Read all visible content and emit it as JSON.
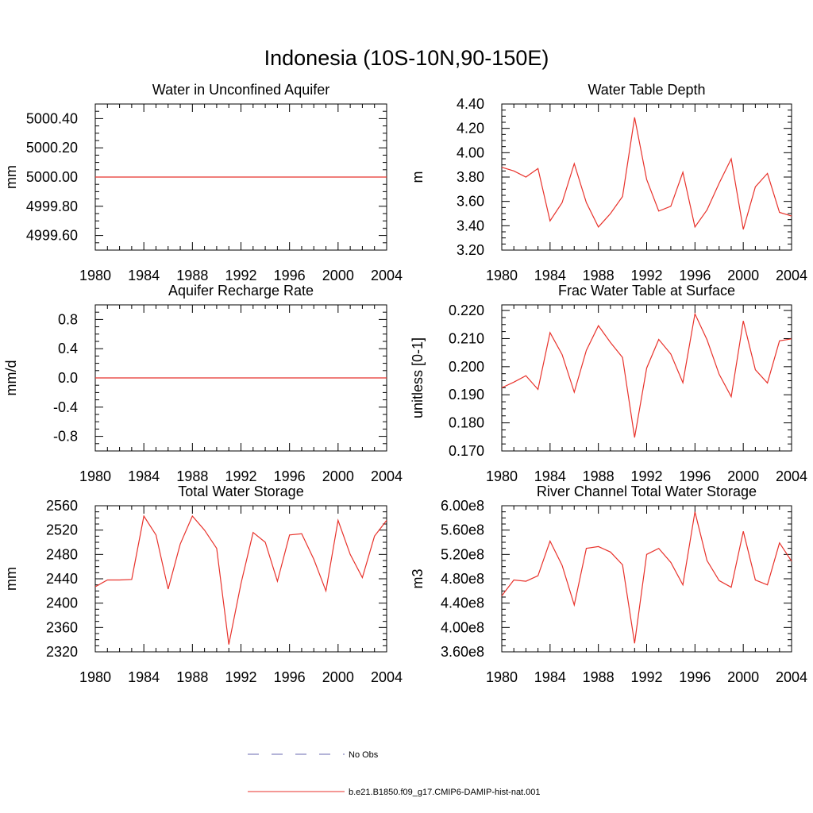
{
  "figure": {
    "title": "Indonesia (10S-10N,90-150E)"
  },
  "legend": {
    "position": "bottom-center",
    "items": [
      {
        "label": "No Obs",
        "style": "dashed",
        "color": "#6a6ab0"
      },
      {
        "label": "b.e21.B1850.f09_g17.CMIP6-DAMIP-hist-nat.001",
        "style": "solid",
        "color": "#e8322b"
      }
    ]
  },
  "chart_data": [
    {
      "type": "line",
      "title": "Water in Unconfined Aquifer",
      "ylabel": "mm",
      "xlim": [
        1980,
        2004
      ],
      "ylim": [
        4999.5,
        5000.5
      ],
      "xticks": [
        1980,
        1984,
        1988,
        1992,
        1996,
        2000,
        2004
      ],
      "xtick_labels": [
        "1980",
        "1984",
        "1988",
        "1992",
        "1996",
        "2000",
        "2004"
      ],
      "yticks": [
        4999.6,
        4999.8,
        5000.0,
        5000.2,
        5000.4
      ],
      "ytick_labels": [
        "4999.60",
        "4999.80",
        "5000.00",
        "5000.20",
        "5000.40"
      ],
      "x": [
        1980,
        1981,
        1982,
        1983,
        1984,
        1985,
        1986,
        1987,
        1988,
        1989,
        1990,
        1991,
        1992,
        1993,
        1994,
        1995,
        1996,
        1997,
        1998,
        1999,
        2000,
        2001,
        2002,
        2003,
        2004
      ],
      "series": [
        {
          "color": "#e8322b",
          "values": [
            5000,
            5000,
            5000,
            5000,
            5000,
            5000,
            5000,
            5000,
            5000,
            5000,
            5000,
            5000,
            5000,
            5000,
            5000,
            5000,
            5000,
            5000,
            5000,
            5000,
            5000,
            5000,
            5000,
            5000,
            5000
          ]
        }
      ]
    },
    {
      "type": "line",
      "title": "Water Table Depth",
      "ylabel": "m",
      "xlim": [
        1980,
        2004
      ],
      "ylim": [
        3.2,
        4.4
      ],
      "xticks": [
        1980,
        1984,
        1988,
        1992,
        1996,
        2000,
        2004
      ],
      "xtick_labels": [
        "1980",
        "1984",
        "1988",
        "1992",
        "1996",
        "2000",
        "2004"
      ],
      "yticks": [
        3.2,
        3.4,
        3.6,
        3.8,
        4.0,
        4.2,
        4.4
      ],
      "ytick_labels": [
        "3.20",
        "3.40",
        "3.60",
        "3.80",
        "4.00",
        "4.20",
        "4.40"
      ],
      "x": [
        1980,
        1981,
        1982,
        1983,
        1984,
        1985,
        1986,
        1987,
        1988,
        1989,
        1990,
        1991,
        1992,
        1993,
        1994,
        1995,
        1996,
        1997,
        1998,
        1999,
        2000,
        2001,
        2002,
        2003,
        2004
      ],
      "series": [
        {
          "color": "#e8322b",
          "values": [
            3.88,
            3.85,
            3.8,
            3.87,
            3.44,
            3.59,
            3.91,
            3.59,
            3.39,
            3.5,
            3.64,
            4.29,
            3.78,
            3.52,
            3.56,
            3.84,
            3.39,
            3.53,
            3.75,
            3.95,
            3.37,
            3.72,
            3.83,
            3.51,
            3.48
          ]
        }
      ]
    },
    {
      "type": "line",
      "title": "Aquifer Recharge Rate",
      "ylabel": "mm/d",
      "xlim": [
        1980,
        2004
      ],
      "ylim": [
        -1.0,
        1.0
      ],
      "xticks": [
        1980,
        1984,
        1988,
        1992,
        1996,
        2000,
        2004
      ],
      "xtick_labels": [
        "1980",
        "1984",
        "1988",
        "1992",
        "1996",
        "2000",
        "2004"
      ],
      "yticks": [
        -0.8,
        -0.4,
        0.0,
        0.4,
        0.8
      ],
      "ytick_labels": [
        "-0.8",
        "-0.4",
        "0.0",
        "0.4",
        "0.8"
      ],
      "x": [
        1980,
        1981,
        1982,
        1983,
        1984,
        1985,
        1986,
        1987,
        1988,
        1989,
        1990,
        1991,
        1992,
        1993,
        1994,
        1995,
        1996,
        1997,
        1998,
        1999,
        2000,
        2001,
        2002,
        2003,
        2004
      ],
      "series": [
        {
          "color": "#e8322b",
          "values": [
            0,
            0,
            0,
            0,
            0,
            0,
            0,
            0,
            0,
            0,
            0,
            0,
            0,
            0,
            0,
            0,
            0,
            0,
            0,
            0,
            0,
            0,
            0,
            0,
            0
          ]
        }
      ]
    },
    {
      "type": "line",
      "title": "Frac Water Table at Surface",
      "ylabel": "unitless [0-1]",
      "xlim": [
        1980,
        2004
      ],
      "ylim": [
        0.17,
        0.222
      ],
      "xticks": [
        1980,
        1984,
        1988,
        1992,
        1996,
        2000,
        2004
      ],
      "xtick_labels": [
        "1980",
        "1984",
        "1988",
        "1992",
        "1996",
        "2000",
        "2004"
      ],
      "yticks": [
        0.17,
        0.18,
        0.19,
        0.2,
        0.21,
        0.22
      ],
      "ytick_labels": [
        "0.170",
        "0.180",
        "0.190",
        "0.200",
        "0.210",
        "0.220"
      ],
      "x": [
        1980,
        1981,
        1982,
        1983,
        1984,
        1985,
        1986,
        1987,
        1988,
        1989,
        1990,
        1991,
        1992,
        1993,
        1994,
        1995,
        1996,
        1997,
        1998,
        1999,
        2000,
        2001,
        2002,
        2003,
        2004
      ],
      "series": [
        {
          "color": "#e8322b",
          "values": [
            0.1925,
            0.1945,
            0.1968,
            0.1919,
            0.2121,
            0.2043,
            0.1909,
            0.2058,
            0.2146,
            0.2086,
            0.2033,
            0.1748,
            0.1995,
            0.2097,
            0.2045,
            0.1943,
            0.2188,
            0.2096,
            0.1973,
            0.1893,
            0.2163,
            0.1989,
            0.1942,
            0.2092,
            0.2099
          ]
        }
      ]
    },
    {
      "type": "line",
      "title": "Total Water Storage",
      "ylabel": "mm",
      "xlim": [
        1980,
        2004
      ],
      "ylim": [
        2320,
        2560
      ],
      "xticks": [
        1980,
        1984,
        1988,
        1992,
        1996,
        2000,
        2004
      ],
      "xtick_labels": [
        "1980",
        "1984",
        "1988",
        "1992",
        "1996",
        "2000",
        "2004"
      ],
      "yticks": [
        2320,
        2360,
        2400,
        2440,
        2480,
        2520,
        2560
      ],
      "ytick_labels": [
        "2320",
        "2360",
        "2400",
        "2440",
        "2480",
        "2520",
        "2560"
      ],
      "x": [
        1980,
        1981,
        1982,
        1983,
        1984,
        1985,
        1986,
        1987,
        1988,
        1989,
        1990,
        1991,
        1992,
        1993,
        1994,
        1995,
        1996,
        1997,
        1998,
        1999,
        2000,
        2001,
        2002,
        2003,
        2004
      ],
      "series": [
        {
          "color": "#e8322b",
          "values": [
            2427,
            2438,
            2438,
            2439,
            2543,
            2512,
            2423,
            2497,
            2543,
            2520,
            2490,
            2332,
            2432,
            2516,
            2500,
            2436,
            2512,
            2514,
            2472,
            2420,
            2536,
            2480,
            2442,
            2510,
            2536
          ]
        }
      ]
    },
    {
      "type": "line",
      "title": "River Channel Total Water Storage",
      "ylabel": "m3",
      "xlim": [
        1980,
        2004
      ],
      "ylim": [
        360000000,
        600000000
      ],
      "xticks": [
        1980,
        1984,
        1988,
        1992,
        1996,
        2000,
        2004
      ],
      "xtick_labels": [
        "1980",
        "1984",
        "1988",
        "1992",
        "1996",
        "2000",
        "2004"
      ],
      "yticks": [
        360000000,
        400000000,
        440000000,
        480000000,
        520000000,
        560000000,
        600000000
      ],
      "ytick_labels": [
        "3.60e8",
        "4.00e8",
        "4.40e8",
        "4.80e8",
        "5.20e8",
        "5.60e8",
        "6.00e8"
      ],
      "x": [
        1980,
        1981,
        1982,
        1983,
        1984,
        1985,
        1986,
        1987,
        1988,
        1989,
        1990,
        1991,
        1992,
        1993,
        1994,
        1995,
        1996,
        1997,
        1998,
        1999,
        2000,
        2001,
        2002,
        2003,
        2004
      ],
      "series": [
        {
          "color": "#e8322b",
          "values": [
            452000000,
            478000000,
            476000000,
            485000000,
            542000000,
            502000000,
            437000000,
            530000000,
            533000000,
            524000000,
            503000000,
            374000000,
            520000000,
            530000000,
            507000000,
            470000000,
            590000000,
            510000000,
            477000000,
            466000000,
            558000000,
            478000000,
            470000000,
            539000000,
            509000000
          ]
        }
      ]
    }
  ]
}
